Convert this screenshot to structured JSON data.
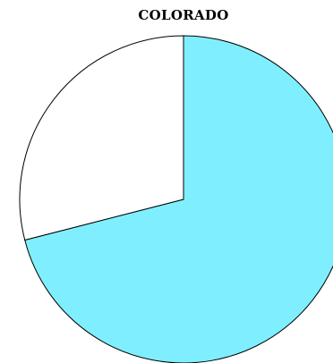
{
  "chart_data": {
    "type": "pie",
    "title": "COLORADO",
    "slices": [
      {
        "label": "",
        "value": 71,
        "color": "#7fefff"
      },
      {
        "label": "",
        "value": 29,
        "color": "#ffffff"
      }
    ],
    "start_angle_deg": 0,
    "direction": "clockwise",
    "legend": "none",
    "outline_color": "#000000"
  }
}
